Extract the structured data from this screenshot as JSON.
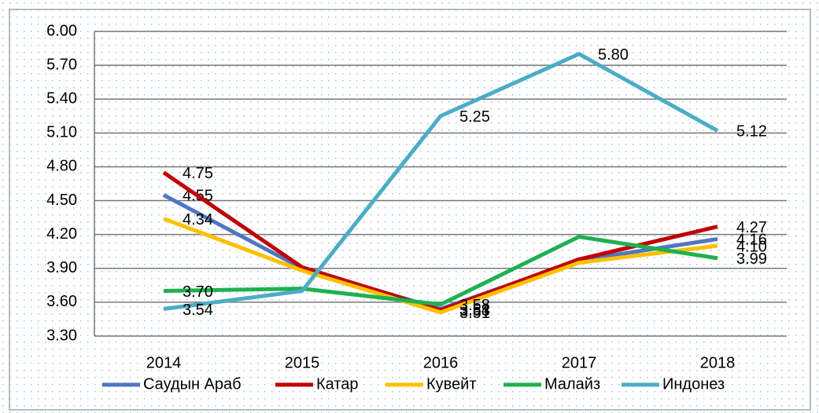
{
  "chart_data": {
    "type": "line",
    "categories": [
      "2014",
      "2015",
      "2016",
      "2017",
      "2018"
    ],
    "ylim": [
      3.3,
      6.0
    ],
    "yticks": [
      {
        "value": 3.3,
        "label": "3.30"
      },
      {
        "value": 3.6,
        "label": "3.60"
      },
      {
        "value": 3.9,
        "label": "3.90"
      },
      {
        "value": 4.2,
        "label": "4.20"
      },
      {
        "value": 4.5,
        "label": "4.50"
      },
      {
        "value": 4.8,
        "label": "4.80"
      },
      {
        "value": 5.1,
        "label": "5.10"
      },
      {
        "value": 5.4,
        "label": "5.40"
      },
      {
        "value": 5.7,
        "label": "5.70"
      },
      {
        "value": 6.0,
        "label": "6.00"
      }
    ],
    "grid": true,
    "legend": "bottom",
    "series": [
      {
        "name": "Саудын Араб",
        "color": "#4f76c2",
        "values": [
          4.55,
          3.9,
          3.54,
          3.97,
          4.16
        ],
        "value_labels": [
          "4.55",
          null,
          "3.54",
          null,
          "4.16"
        ]
      },
      {
        "name": "Катар",
        "color": "#c00000",
        "values": [
          4.75,
          3.91,
          3.53,
          3.98,
          4.27
        ],
        "value_labels": [
          "4.75",
          null,
          "3.53",
          null,
          "4.27"
        ]
      },
      {
        "name": "Кувейт",
        "color": "#ffc000",
        "values": [
          4.34,
          3.88,
          3.51,
          3.95,
          4.1
        ],
        "value_labels": [
          "4.34",
          null,
          "3.51",
          null,
          "4.10"
        ]
      },
      {
        "name": "Малайз",
        "color": "#1fb04f",
        "values": [
          3.7,
          3.72,
          3.58,
          4.18,
          3.99
        ],
        "value_labels": [
          "3.70",
          null,
          "3.58",
          null,
          "3.99"
        ]
      },
      {
        "name": "Индонез",
        "color": "#4bacc6",
        "values": [
          3.54,
          3.7,
          5.25,
          5.8,
          5.12
        ],
        "value_labels": [
          "3.54",
          null,
          "5.25",
          "5.80",
          "5.12"
        ]
      }
    ]
  }
}
